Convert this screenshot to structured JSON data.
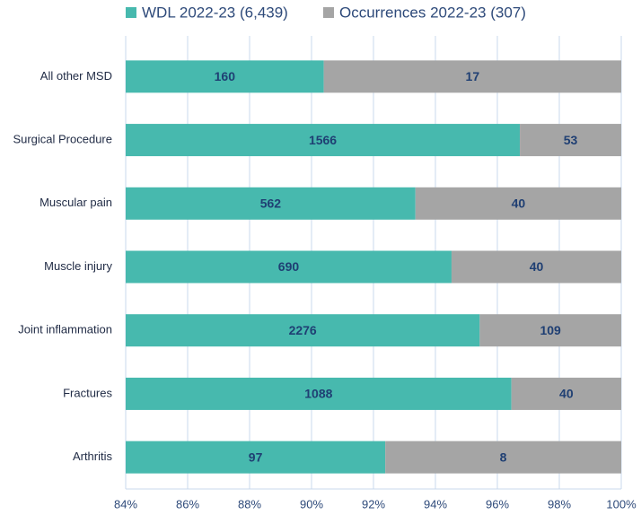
{
  "chart_data": {
    "type": "bar",
    "orientation": "horizontal",
    "stacking": "percent",
    "categories": [
      "All other MSD",
      "Surgical Procedure",
      "Muscular pain",
      "Muscle injury",
      "Joint inflammation",
      "Fractures",
      "Arthritis"
    ],
    "series": [
      {
        "name": "WDL 2022-23 (6,439)",
        "color": "#47b9ae",
        "values": [
          160,
          1566,
          562,
          690,
          2276,
          1088,
          97
        ]
      },
      {
        "name": "Occurrences 2022-23 (307)",
        "color": "#a5a5a5",
        "values": [
          17,
          53,
          40,
          40,
          109,
          40,
          8
        ]
      }
    ],
    "xlim": [
      84,
      100
    ],
    "xticks": [
      {
        "value": 84,
        "label": "84%"
      },
      {
        "value": 86,
        "label": "86%"
      },
      {
        "value": 88,
        "label": "88%"
      },
      {
        "value": 90,
        "label": "90%"
      },
      {
        "value": 92,
        "label": "92%"
      },
      {
        "value": 94,
        "label": "94%"
      },
      {
        "value": 96,
        "label": "96%"
      },
      {
        "value": 98,
        "label": "98%"
      },
      {
        "value": 100,
        "label": "100%"
      }
    ],
    "grid": true,
    "legend": "top"
  }
}
